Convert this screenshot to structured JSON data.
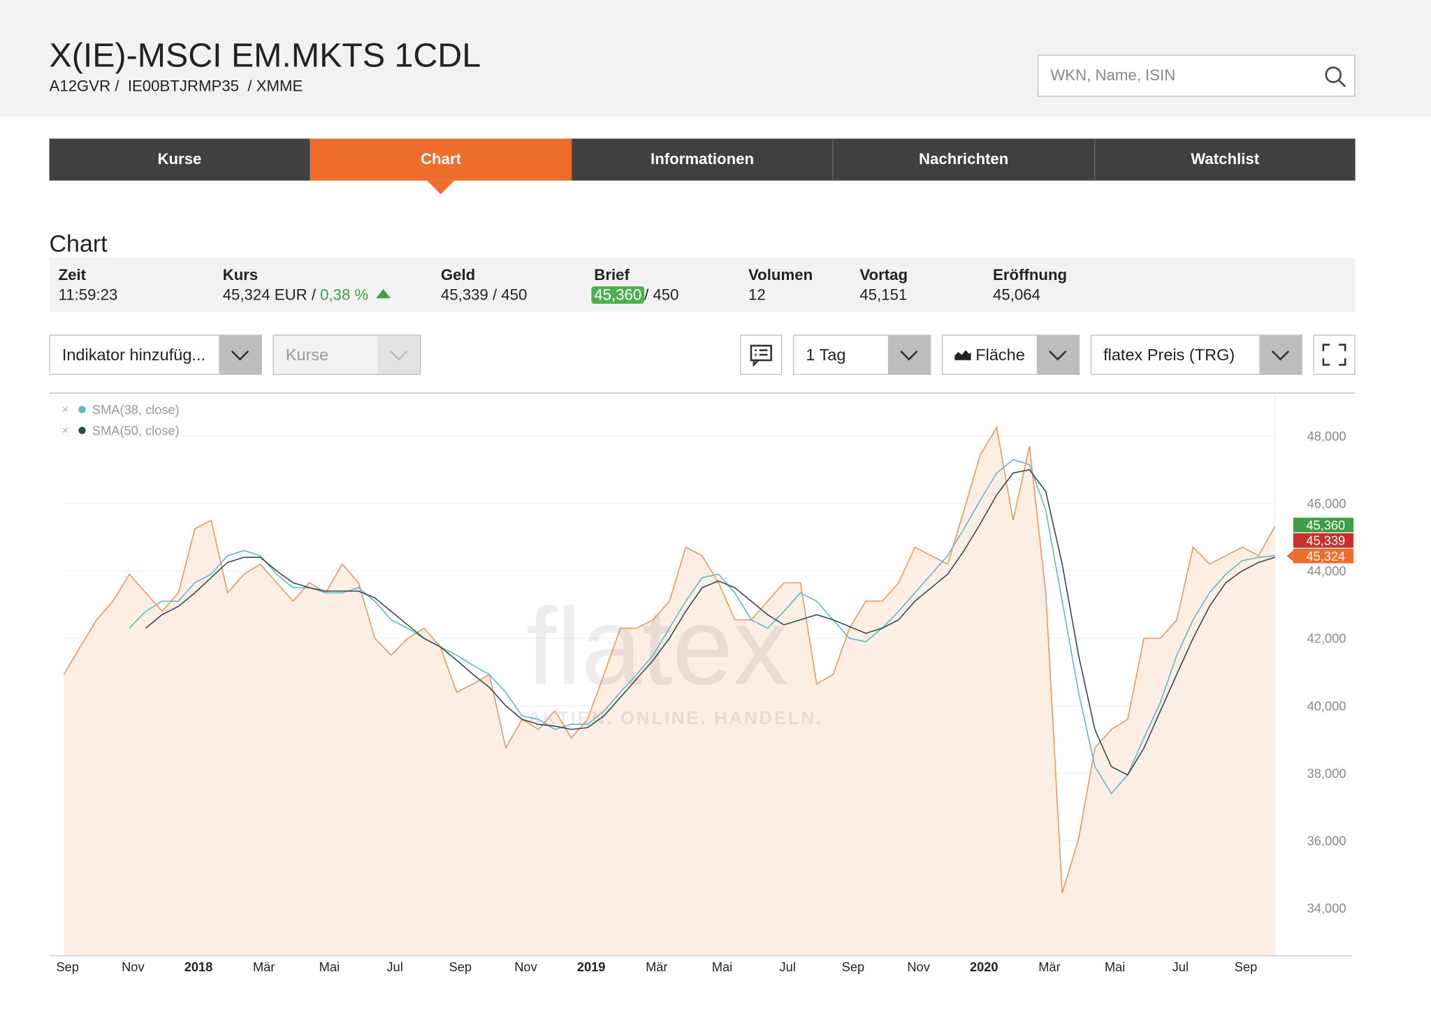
{
  "header": {
    "title": "X(IE)-MSCI EM.MKTS 1CDL",
    "subtitle": "A12GVR /  IE00BTJRMP35  / XMME",
    "search_placeholder": "WKN, Name, ISIN"
  },
  "tabs": {
    "items": [
      "Kurse",
      "Chart",
      "Informationen",
      "Nachrichten",
      "Watchlist"
    ],
    "active": 1
  },
  "section_title": "Chart",
  "quote": {
    "zeit": {
      "label": "Zeit",
      "value": "11:59:23"
    },
    "kurs": {
      "label": "Kurs",
      "value": "45,324 EUR / ",
      "change": "0,38 %"
    },
    "geld": {
      "label": "Geld",
      "value": "45,339 / 450"
    },
    "brief": {
      "label": "Brief",
      "value": "45,360",
      "size": "/ 450"
    },
    "volumen": {
      "label": "Volumen",
      "value": "12"
    },
    "vortag": {
      "label": "Vortag",
      "value": "45,151"
    },
    "eroeffnung": {
      "label": "Eröffnung",
      "value": "45,064"
    }
  },
  "controls": {
    "indicator": "Indikator hinzufüg...",
    "kurse": "Kurse",
    "interval": "1 Tag",
    "style": "Fläche",
    "source": "flatex Preis (TRG)"
  },
  "chart_data": {
    "type": "area",
    "watermark": "flatex",
    "watermark_tagline": "AKTIEN. ONLINE. HANDELN.",
    "categories": [
      "Sep",
      null,
      null,
      null,
      "Nov",
      null,
      null,
      null,
      "2018",
      null,
      null,
      null,
      "Mär",
      null,
      null,
      null,
      "Mai",
      null,
      null,
      null,
      "Jul",
      null,
      null,
      null,
      "Sep",
      null,
      null,
      null,
      "Nov",
      null,
      null,
      null,
      "2019",
      null,
      null,
      null,
      "Mär",
      null,
      null,
      null,
      "Mai",
      null,
      null,
      null,
      "Jul",
      null,
      null,
      null,
      "Sep",
      null,
      null,
      null,
      "Nov",
      null,
      null,
      null,
      "2020",
      null,
      null,
      null,
      "Mär",
      null,
      null,
      null,
      "Mai",
      null,
      null,
      null,
      "Jul",
      null,
      null,
      null,
      "Sep",
      null,
      null
    ],
    "values": [
      40930,
      41750,
      42550,
      43100,
      43900,
      43350,
      42800,
      43350,
      45250,
      45500,
      43350,
      43900,
      44200,
      43650,
      43100,
      43650,
      43350,
      44200,
      43650,
      42000,
      41500,
      42000,
      42300,
      41750,
      40400,
      40650,
      40930,
      38750,
      39600,
      39300,
      39850,
      39050,
      39600,
      40930,
      42300,
      42300,
      42550,
      43100,
      44700,
      44450,
      43650,
      42550,
      42550,
      43100,
      43650,
      43650,
      40650,
      40930,
      42300,
      43100,
      43100,
      43650,
      44700,
      44450,
      44200,
      45800,
      47450,
      48250,
      45500,
      47700,
      43350,
      34450,
      36050,
      38750,
      39300,
      39600,
      42000,
      42000,
      42550,
      44700,
      44200,
      44450,
      44700,
      44450,
      45324
    ],
    "color": "#f0945a",
    "fill": "#fdeee4",
    "series": [
      {
        "name": "SMA(38, close)",
        "color": "#5bb8c4",
        "values": [
          null,
          null,
          null,
          null,
          42300,
          42800,
          43100,
          43100,
          43650,
          43900,
          44450,
          44600,
          44450,
          43900,
          43500,
          43500,
          43350,
          43350,
          43500,
          43100,
          42550,
          42300,
          42000,
          41750,
          41500,
          41200,
          40930,
          40400,
          39700,
          39600,
          39300,
          39450,
          39450,
          39850,
          40400,
          40930,
          41500,
          42300,
          43100,
          43800,
          43900,
          43350,
          42550,
          42300,
          42800,
          43350,
          43100,
          42550,
          42000,
          41900,
          42300,
          42800,
          43350,
          43900,
          44450,
          45250,
          46100,
          46900,
          47300,
          47150,
          45800,
          43100,
          40400,
          38200,
          37400,
          37950,
          39050,
          40100,
          41500,
          42550,
          43350,
          43900,
          44300,
          44400,
          44450
        ]
      },
      {
        "name": "SMA(50, close)",
        "color": "#2d4a4a",
        "values": [
          null,
          null,
          null,
          null,
          null,
          42300,
          42700,
          42950,
          43350,
          43800,
          44250,
          44400,
          44400,
          44000,
          43650,
          43500,
          43400,
          43400,
          43400,
          43200,
          42800,
          42400,
          42000,
          41750,
          41350,
          40930,
          40550,
          40000,
          39600,
          39450,
          39400,
          39300,
          39350,
          39700,
          40250,
          40800,
          41350,
          42000,
          42800,
          43500,
          43700,
          43500,
          43100,
          42700,
          42400,
          42550,
          42700,
          42550,
          42350,
          42150,
          42300,
          42550,
          43100,
          43500,
          43900,
          44600,
          45400,
          46250,
          46900,
          47000,
          46350,
          44200,
          41500,
          39300,
          38200,
          37950,
          38750,
          39850,
          40930,
          42000,
          42950,
          43650,
          44000,
          44250,
          44400
        ]
      }
    ],
    "ylim": [
      32590,
      49270
    ],
    "yticks": [
      {
        "value": 34000,
        "label": "34,000"
      },
      {
        "value": 36000,
        "label": "36,000"
      },
      {
        "value": 38000,
        "label": "38,000"
      },
      {
        "value": 40000,
        "label": "40,000"
      },
      {
        "value": 42000,
        "label": "42,000"
      },
      {
        "value": 44000,
        "label": "44,000"
      },
      {
        "value": 46000,
        "label": "46,000"
      },
      {
        "value": 48000,
        "label": "48,000"
      }
    ],
    "grid": true,
    "price_tags": [
      {
        "value": 45360,
        "label": "45,360",
        "color": "#3f9d47"
      },
      {
        "value": 45339,
        "label": "45,339",
        "color": "#c9302c"
      },
      {
        "value": 45324,
        "label": "45,324",
        "color": "#ee6d2d"
      }
    ]
  }
}
